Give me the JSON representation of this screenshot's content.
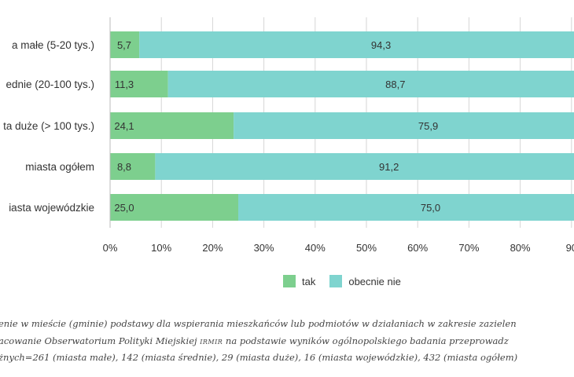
{
  "chart_data": {
    "type": "bar",
    "orientation": "horizontal",
    "stacked": true,
    "categories": [
      "a małe (5-20 tys.)",
      "ednie (20-100 tys.)",
      "ta duże (> 100 tys.)",
      "miasta ogółem",
      "iasta wojewódzkie"
    ],
    "series": [
      {
        "name": "tak",
        "values": [
          5.7,
          11.3,
          24.1,
          8.8,
          25.0
        ],
        "labels": [
          "5,7",
          "11,3",
          "24,1",
          "8,8",
          "25,0"
        ]
      },
      {
        "name": "obecnie nie",
        "values": [
          94.3,
          88.7,
          75.9,
          91.2,
          75.0
        ],
        "labels": [
          "94,3",
          "88,7",
          "75,9",
          "91,2",
          "75,0"
        ]
      }
    ],
    "colors": {
      "tak": "#7dcf8e",
      "obecnie nie": "#7fd4cf"
    },
    "xlim": [
      0,
      100
    ],
    "x_ticks": [
      "0%",
      "10%",
      "20%",
      "30%",
      "40%",
      "50%",
      "60%",
      "70%",
      "80%",
      "90"
    ],
    "grid": true,
    "legend_position": "bottom"
  },
  "notes": {
    "line1": "enie w mieście (gminie) podstawy dla wspierania mieszkańców lub podmiotów w działaniach w zakresie zazielen",
    "line2_pre": "acowanie Obserwatorium Polityki Miejskiej ",
    "line2_sc": "irmir",
    "line2_post": " na podstawie wyników ogólnopolskiego badania przeprowadz",
    "line3": "żnych=261 (miasta małe), 142 (miasta średnie), 29 (miasta duże), 16 (miasta wojewódzkie), 432 (miasta ogółem)"
  }
}
